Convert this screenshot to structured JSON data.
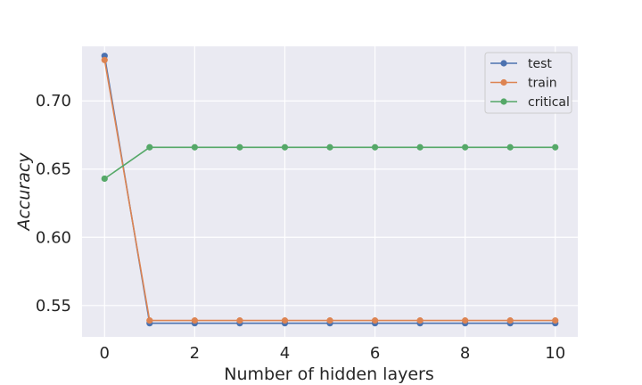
{
  "chart_data": {
    "type": "line",
    "title": "",
    "xlabel": "Number of hidden layers",
    "ylabel": "Accuracy",
    "x": [
      0,
      1,
      2,
      3,
      4,
      5,
      6,
      7,
      8,
      9,
      10
    ],
    "xlim": [
      -0.5,
      10.5
    ],
    "ylim": [
      0.527,
      0.74
    ],
    "xticks": [
      0,
      2,
      4,
      6,
      8,
      10
    ],
    "yticks": [
      0.55,
      0.6,
      0.65,
      0.7
    ],
    "ytick_labels": [
      "0.55",
      "0.60",
      "0.65",
      "0.70"
    ],
    "grid": true,
    "legend_position": "top-right",
    "series": [
      {
        "name": "test",
        "color": "#4c72b0",
        "values": [
          0.733,
          0.537,
          0.537,
          0.537,
          0.537,
          0.537,
          0.537,
          0.537,
          0.537,
          0.537,
          0.537
        ]
      },
      {
        "name": "train",
        "color": "#dd8452",
        "values": [
          0.73,
          0.539,
          0.539,
          0.539,
          0.539,
          0.539,
          0.539,
          0.539,
          0.539,
          0.539,
          0.539
        ]
      },
      {
        "name": "critical",
        "color": "#55a868",
        "values": [
          0.643,
          0.666,
          0.666,
          0.666,
          0.666,
          0.666,
          0.666,
          0.666,
          0.666,
          0.666,
          0.666
        ]
      }
    ]
  }
}
